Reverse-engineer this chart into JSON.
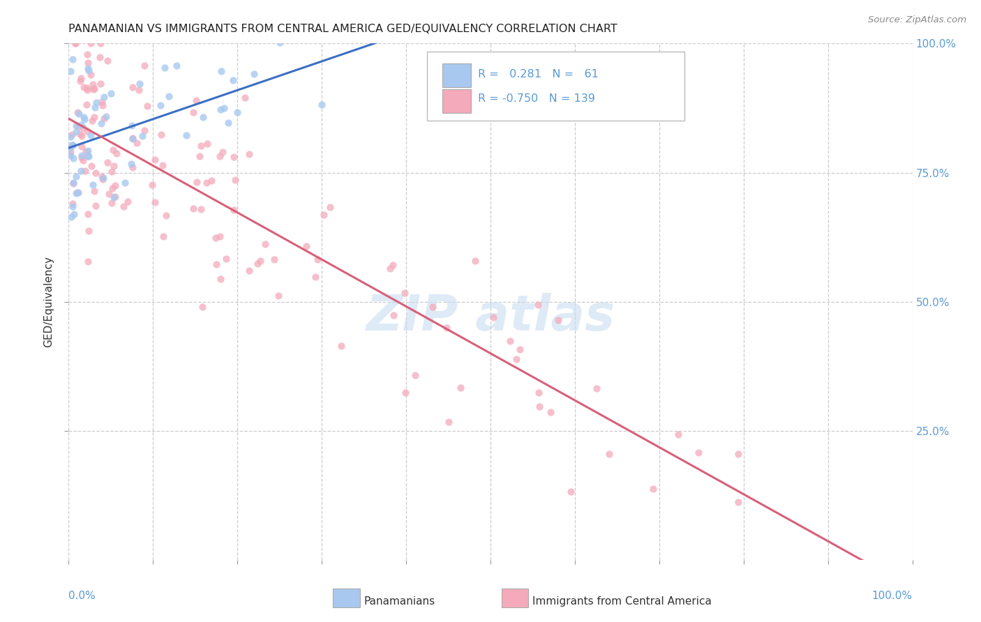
{
  "title": "PANAMANIAN VS IMMIGRANTS FROM CENTRAL AMERICA GED/EQUIVALENCY CORRELATION CHART",
  "source": "Source: ZipAtlas.com",
  "ylabel": "GED/Equivalency",
  "legend_panamanian": "Panamanians",
  "legend_immigrant": "Immigrants from Central America",
  "r_pan": 0.281,
  "n_pan": 61,
  "r_imm": -0.75,
  "n_imm": 139,
  "color_pan": "#A8C8F0",
  "color_imm": "#F4AABB",
  "line_color_pan": "#3A6FC4",
  "line_color_imm": "#D8607A",
  "watermark_color": "#C8DCF0",
  "background": "#FFFFFF",
  "tick_color": "#5B9BD5",
  "grid_color": "#CCCCCC"
}
